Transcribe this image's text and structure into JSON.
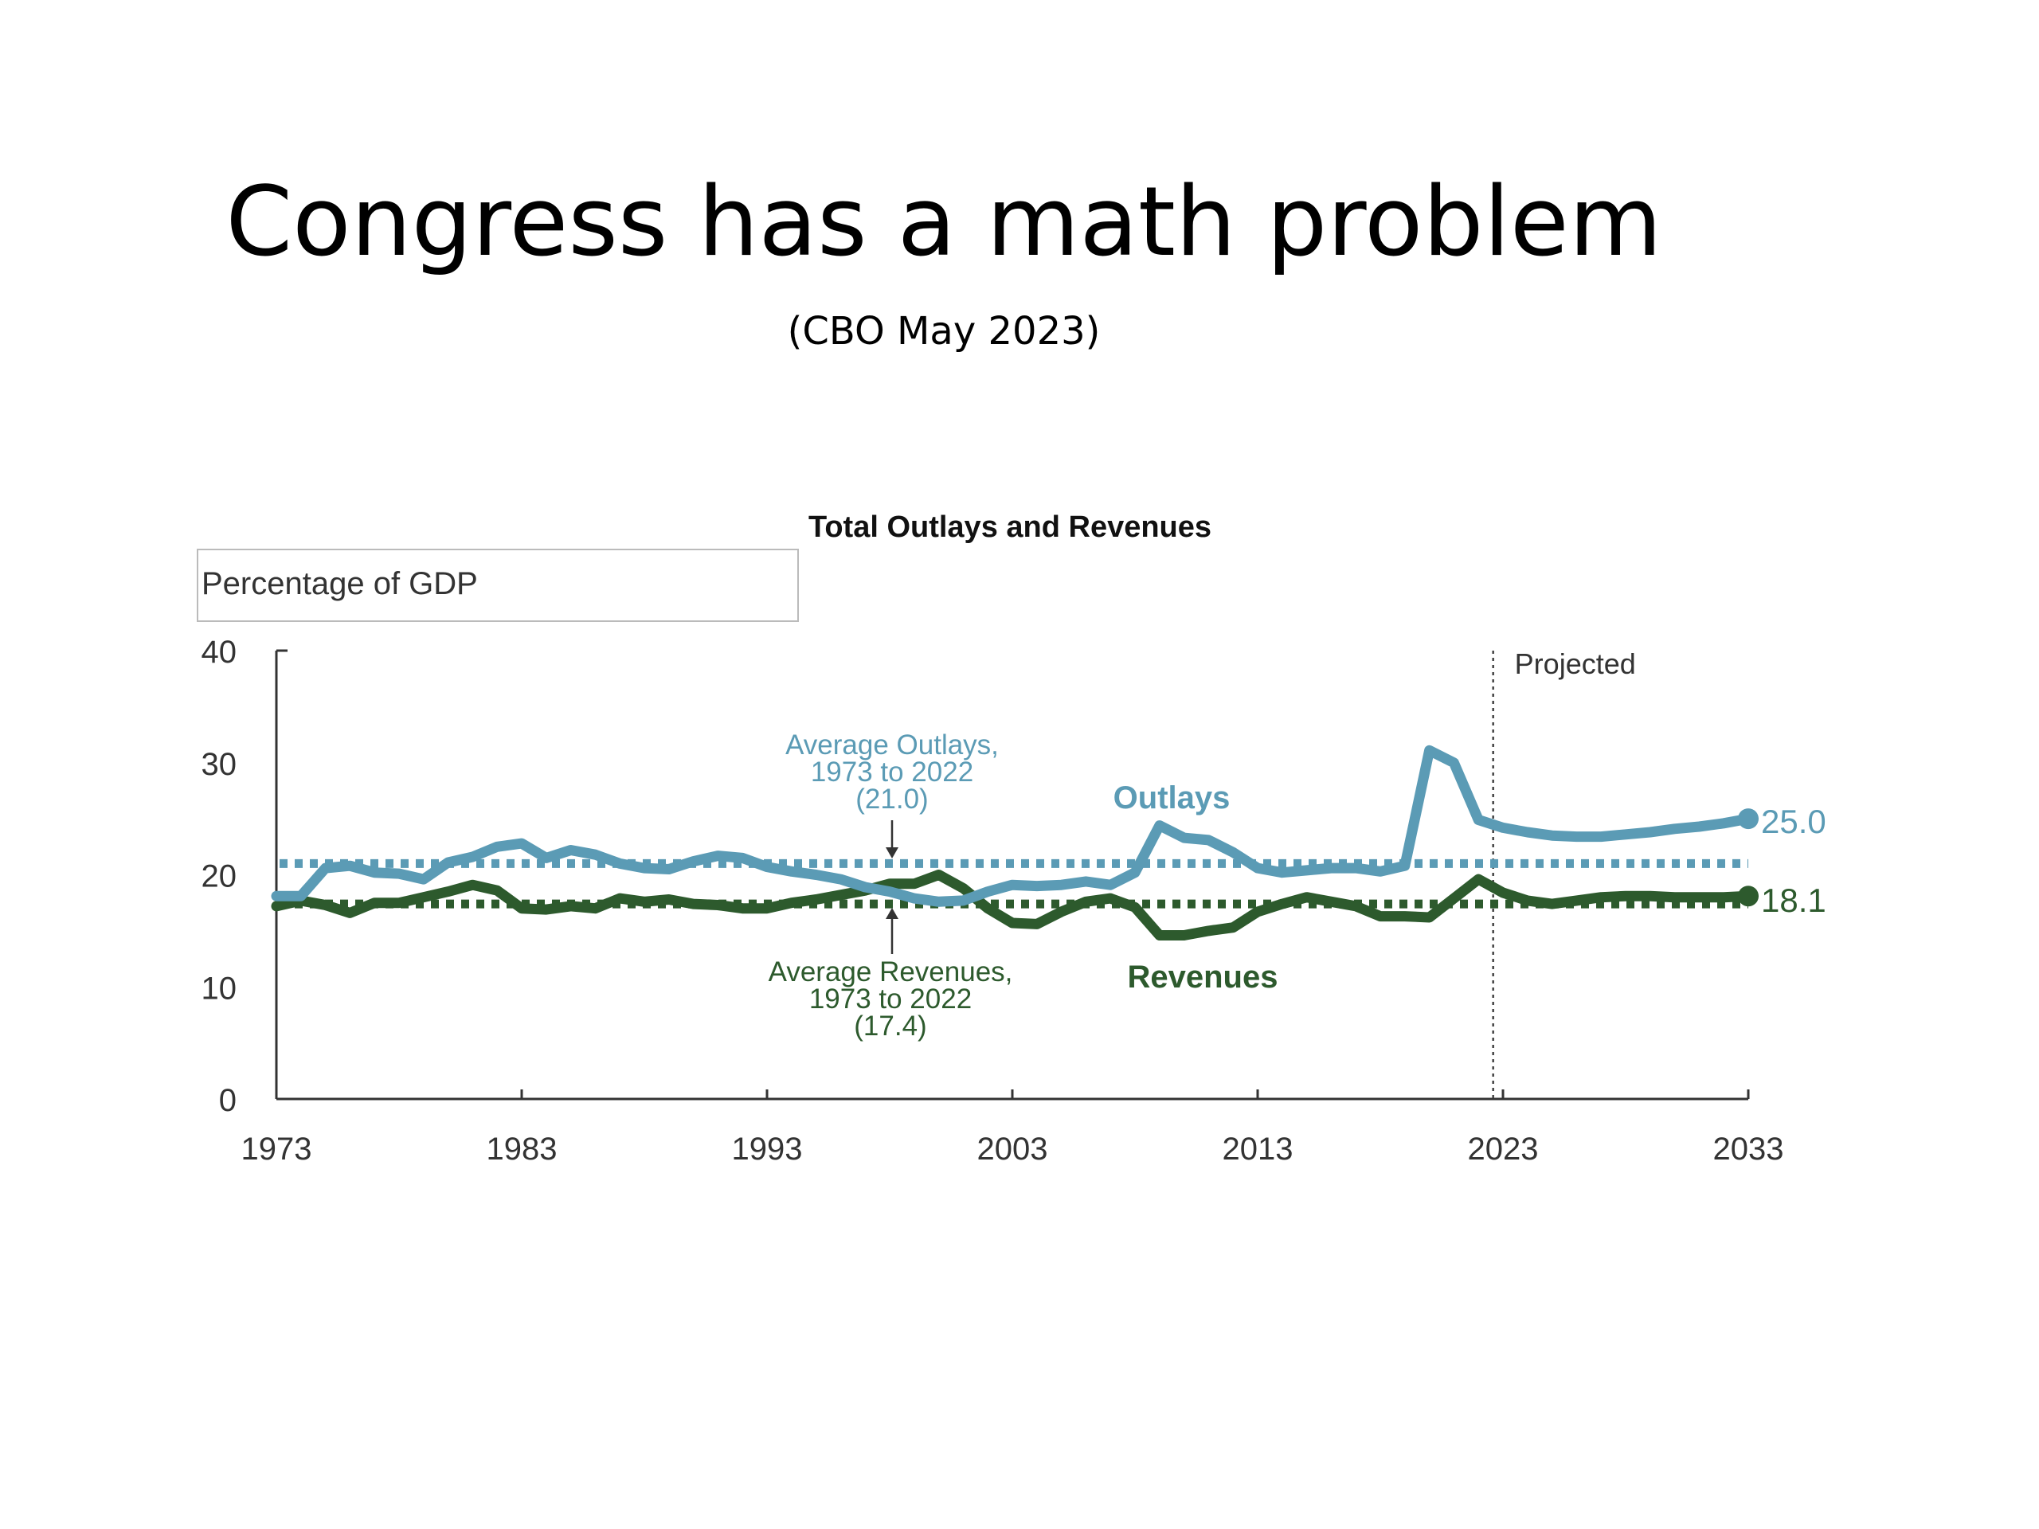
{
  "slide": {
    "title": "Congress has a math problem",
    "subtitle": "(CBO May 2023)"
  },
  "chart_data": {
    "type": "line",
    "title": "Total Outlays and Revenues",
    "unit_label": "Percentage of GDP",
    "xlim": [
      1973,
      2033
    ],
    "ylim": [
      0,
      40
    ],
    "x_ticks": [
      1973,
      1983,
      1993,
      2003,
      2013,
      2023,
      2033
    ],
    "y_ticks": [
      0,
      10,
      20,
      30,
      40
    ],
    "projection_start": 2022.6,
    "projection_label": "Projected",
    "colors": {
      "outlays": "#5b9bb5",
      "revenues": "#2d5a2d",
      "text_dark": "#333333"
    },
    "series": [
      {
        "name": "Outlays",
        "color": "#5b9bb5",
        "x": [
          1973,
          1974,
          1975,
          1976,
          1977,
          1978,
          1979,
          1980,
          1981,
          1982,
          1983,
          1984,
          1985,
          1986,
          1987,
          1988,
          1989,
          1990,
          1991,
          1992,
          1993,
          1994,
          1995,
          1996,
          1997,
          1998,
          1999,
          2000,
          2001,
          2002,
          2003,
          2004,
          2005,
          2006,
          2007,
          2008,
          2009,
          2010,
          2011,
          2012,
          2013,
          2014,
          2015,
          2016,
          2017,
          2018,
          2019,
          2020,
          2021,
          2022,
          2023,
          2024,
          2025,
          2026,
          2027,
          2028,
          2029,
          2030,
          2031,
          2032,
          2033
        ],
        "values": [
          18.1,
          18.1,
          20.6,
          20.8,
          20.2,
          20.1,
          19.6,
          21.1,
          21.6,
          22.5,
          22.8,
          21.5,
          22.2,
          21.8,
          21.0,
          20.6,
          20.5,
          21.2,
          21.7,
          21.5,
          20.7,
          20.3,
          20.0,
          19.6,
          18.9,
          18.5,
          17.9,
          17.6,
          17.7,
          18.5,
          19.1,
          19.0,
          19.1,
          19.4,
          19.1,
          20.2,
          24.4,
          23.3,
          23.1,
          22.0,
          20.6,
          20.2,
          20.4,
          20.6,
          20.6,
          20.3,
          20.8,
          31.1,
          30.0,
          24.9,
          24.2,
          23.8,
          23.5,
          23.4,
          23.4,
          23.6,
          23.8,
          24.1,
          24.3,
          24.6,
          25.0
        ]
      },
      {
        "name": "Revenues",
        "color": "#2d5a2d",
        "x": [
          1973,
          1974,
          1975,
          1976,
          1977,
          1978,
          1979,
          1980,
          1981,
          1982,
          1983,
          1984,
          1985,
          1986,
          1987,
          1988,
          1989,
          1990,
          1991,
          1992,
          1993,
          1994,
          1995,
          1996,
          1997,
          1998,
          1999,
          2000,
          2001,
          2002,
          2003,
          2004,
          2005,
          2006,
          2007,
          2008,
          2009,
          2010,
          2011,
          2012,
          2013,
          2014,
          2015,
          2016,
          2017,
          2018,
          2019,
          2020,
          2021,
          2022,
          2023,
          2024,
          2025,
          2026,
          2027,
          2028,
          2029,
          2030,
          2031,
          2032,
          2033
        ],
        "values": [
          17.2,
          17.7,
          17.3,
          16.6,
          17.5,
          17.5,
          18.0,
          18.5,
          19.1,
          18.6,
          17.0,
          16.9,
          17.2,
          17.0,
          17.9,
          17.6,
          17.8,
          17.4,
          17.3,
          17.0,
          17.0,
          17.5,
          17.8,
          18.2,
          18.6,
          19.2,
          19.2,
          20.0,
          18.8,
          17.0,
          15.7,
          15.6,
          16.7,
          17.6,
          17.9,
          17.1,
          14.6,
          14.6,
          15.0,
          15.3,
          16.7,
          17.4,
          18.0,
          17.6,
          17.2,
          16.3,
          16.3,
          16.2,
          17.9,
          19.6,
          18.4,
          17.7,
          17.4,
          17.7,
          18.0,
          18.1,
          18.1,
          18.0,
          18.0,
          18.0,
          18.1
        ]
      }
    ],
    "averages": [
      {
        "name": "Average Outlays",
        "value": 21.0,
        "color": "#5b9bb5",
        "label_lines": [
          "Average Outlays,",
          "1973 to 2022",
          "(21.0)"
        ]
      },
      {
        "name": "Average Revenues",
        "value": 17.4,
        "color": "#2d5a2d",
        "label_lines": [
          "Average Revenues,",
          "1973 to 2022",
          "(17.4)"
        ]
      }
    ],
    "series_labels": {
      "outlays": "Outlays",
      "revenues": "Revenues"
    },
    "end_labels": {
      "outlays": "25.0",
      "revenues": "18.1"
    }
  }
}
